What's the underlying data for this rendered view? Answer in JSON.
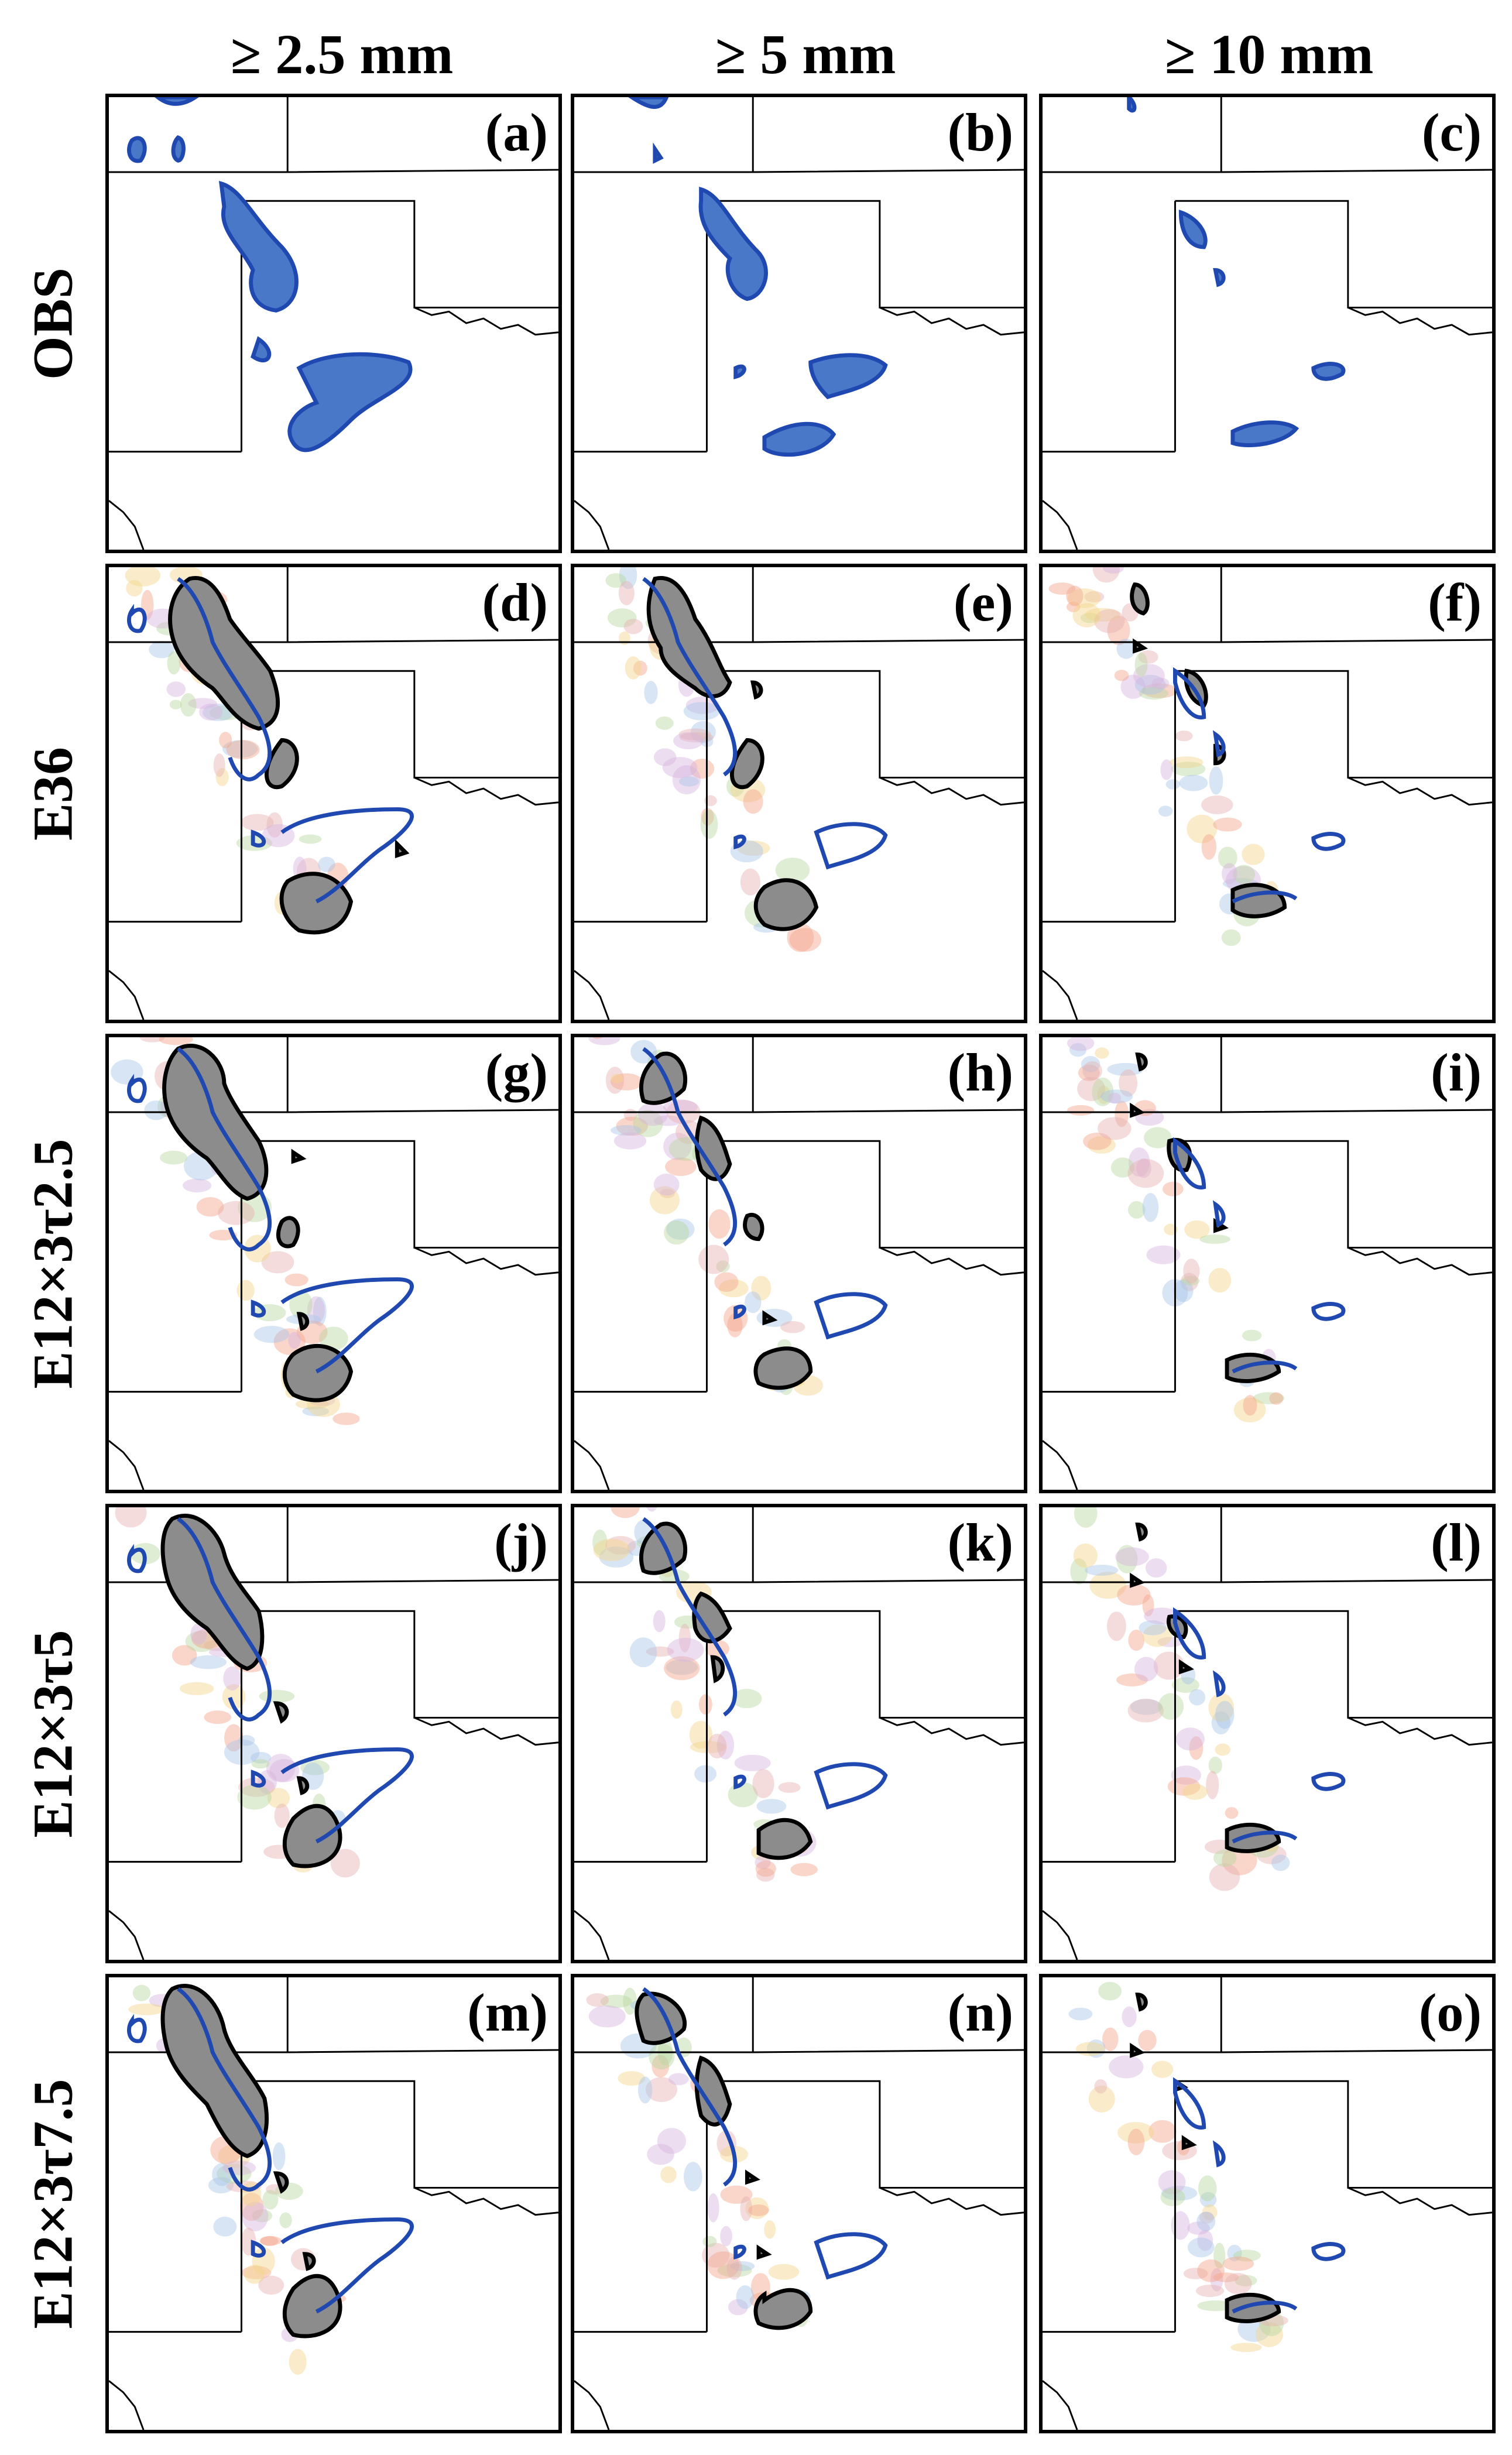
{
  "columns": [
    {
      "label": "≥ 2.5 mm"
    },
    {
      "label": "≥ 5 mm"
    },
    {
      "label": "≥ 10 mm"
    }
  ],
  "rows": [
    {
      "label": "OBS",
      "panels": [
        {
          "label": "(a)"
        },
        {
          "label": "(b)"
        },
        {
          "label": "(c)"
        }
      ]
    },
    {
      "label": "E36",
      "panels": [
        {
          "label": "(d)"
        },
        {
          "label": "(e)"
        },
        {
          "label": "(f)"
        }
      ]
    },
    {
      "label": "E12×3τ2.5",
      "panels": [
        {
          "label": "(g)"
        },
        {
          "label": "(h)"
        },
        {
          "label": "(i)"
        }
      ]
    },
    {
      "label": "E12×3τ5",
      "panels": [
        {
          "label": "(j)"
        },
        {
          "label": "(k)"
        },
        {
          "label": "(l)"
        }
      ]
    },
    {
      "label": "E12×3τ7.5",
      "panels": [
        {
          "label": "(m)"
        },
        {
          "label": "(n)"
        },
        {
          "label": "(o)"
        }
      ]
    }
  ],
  "colors": {
    "observed_fill": "#4a78c8",
    "observed_outline": "#1f48b0",
    "ensemble_fill": "#8c8c8c",
    "ensemble_outline": "#000000",
    "border": "#000000"
  }
}
